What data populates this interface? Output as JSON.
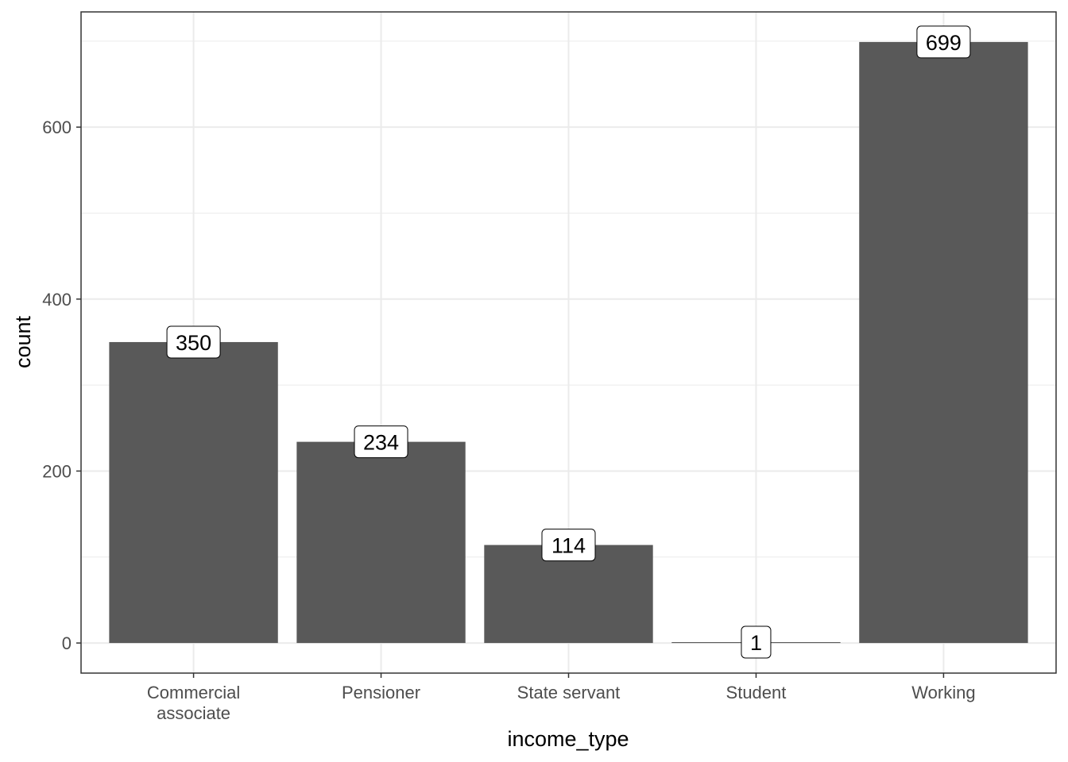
{
  "chart_data": {
    "type": "bar",
    "categories": [
      [
        "Commercial",
        "associate"
      ],
      [
        "Pensioner"
      ],
      [
        "State servant"
      ],
      [
        "Student"
      ],
      [
        "Working"
      ]
    ],
    "values": [
      350,
      234,
      114,
      1,
      699
    ],
    "data_labels": [
      "350",
      "234",
      "114",
      "1",
      "699"
    ],
    "title": "",
    "xlabel": "income_type",
    "ylabel": "count",
    "ylim": [
      -35,
      734
    ],
    "yticks": [
      0,
      200,
      400,
      600
    ],
    "ytick_labels": [
      "0",
      "200",
      "400",
      "600"
    ],
    "grid": true,
    "legend": "none",
    "bar_color": "#595959",
    "grid_color": "#ebebeb",
    "panel_border_color": "#333333"
  }
}
